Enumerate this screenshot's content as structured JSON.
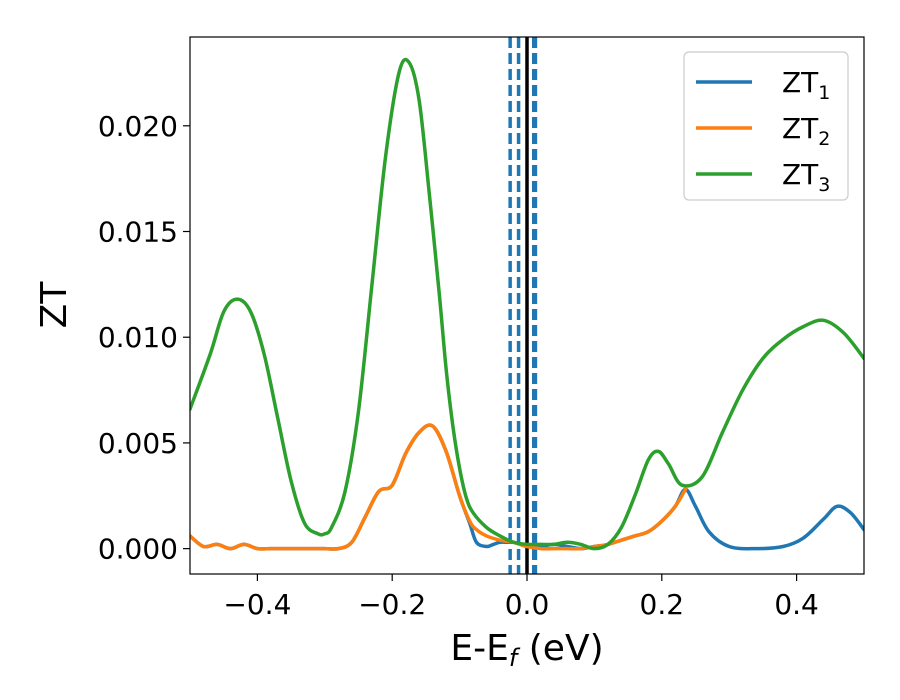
{
  "chart_data": {
    "type": "line",
    "xlabel": "E-E",
    "xlabel_sub": "f",
    "xlabel_unit": " (eV)",
    "ylabel": "ZT",
    "xlim": [
      -0.5,
      0.5
    ],
    "ylim": [
      -0.0012,
      0.0242
    ],
    "xticks": [
      -0.4,
      -0.2,
      0.0,
      0.2,
      0.4
    ],
    "xtick_labels": [
      "−0.4",
      "−0.2",
      "0.0",
      "0.2",
      "0.4"
    ],
    "yticks": [
      0.0,
      0.005,
      0.01,
      0.015,
      0.02
    ],
    "ytick_labels": [
      "0.000",
      "0.005",
      "0.010",
      "0.015",
      "0.020"
    ],
    "grid": false,
    "legend_position": "top-right",
    "vlines": [
      {
        "x": 0.0,
        "style": "solid",
        "color": "#000000"
      },
      {
        "x": -0.0125,
        "style": "dashed",
        "color": "#1f77b4"
      },
      {
        "x": 0.0125,
        "style": "dashed",
        "color": "#1f77b4"
      },
      {
        "x": -0.025,
        "style": "dashed",
        "color": "#1f77b4"
      },
      {
        "x": 0.01,
        "style": "dashed",
        "color": "#1f77b4"
      }
    ],
    "series": [
      {
        "name": "ZT",
        "sub": "1",
        "color": "#1f77b4",
        "x": [
          -0.5,
          -0.48,
          -0.46,
          -0.44,
          -0.42,
          -0.4,
          -0.38,
          -0.36,
          -0.34,
          -0.32,
          -0.3,
          -0.28,
          -0.26,
          -0.24,
          -0.22,
          -0.2,
          -0.18,
          -0.16,
          -0.14,
          -0.12,
          -0.1,
          -0.085,
          -0.075,
          -0.06,
          -0.05,
          -0.04,
          -0.03,
          -0.02,
          -0.01,
          0.0,
          0.01,
          0.02,
          0.04,
          0.06,
          0.08,
          0.1,
          0.12,
          0.14,
          0.16,
          0.18,
          0.2,
          0.22,
          0.235,
          0.25,
          0.27,
          0.3,
          0.34,
          0.38,
          0.41,
          0.44,
          0.46,
          0.48,
          0.5
        ],
        "y": [
          0.0006,
          0.0001,
          0.0002,
          0.0,
          0.0002,
          0.0,
          0.0,
          0.0,
          0.0,
          0.0,
          0.0,
          0.0,
          0.0003,
          0.0015,
          0.0027,
          0.003,
          0.0045,
          0.0055,
          0.0058,
          0.0046,
          0.0025,
          0.0012,
          0.0003,
          0.0001,
          0.0002,
          0.0003,
          0.0003,
          0.0003,
          0.0002,
          0.0001,
          0.0001,
          0.0001,
          0.0002,
          0.0001,
          0.0,
          0.0001,
          0.0002,
          0.0004,
          0.0006,
          0.0008,
          0.0013,
          0.002,
          0.0028,
          0.002,
          0.0008,
          0.0001,
          0.0,
          0.0001,
          0.0005,
          0.0014,
          0.002,
          0.0017,
          0.0009
        ]
      },
      {
        "name": "ZT",
        "sub": "2",
        "color": "#ff7f0e",
        "x": [
          -0.5,
          -0.48,
          -0.46,
          -0.44,
          -0.42,
          -0.4,
          -0.38,
          -0.36,
          -0.34,
          -0.32,
          -0.3,
          -0.28,
          -0.26,
          -0.24,
          -0.22,
          -0.2,
          -0.18,
          -0.16,
          -0.14,
          -0.12,
          -0.1,
          -0.085,
          -0.075,
          -0.06,
          -0.04,
          -0.02,
          0.0,
          0.02,
          0.04,
          0.06,
          0.08,
          0.1,
          0.12,
          0.14,
          0.16,
          0.18,
          0.2,
          0.22,
          0.235
        ],
        "y": [
          0.0006,
          0.0001,
          0.0002,
          0.0,
          0.0002,
          0.0,
          0.0,
          0.0,
          0.0,
          0.0,
          0.0,
          0.0,
          0.0003,
          0.0015,
          0.0027,
          0.003,
          0.0045,
          0.0055,
          0.0058,
          0.0046,
          0.0025,
          0.0013,
          0.0009,
          0.0006,
          0.0004,
          0.0003,
          0.0001,
          0.0,
          0.0,
          0.0,
          0.0,
          0.0001,
          0.0002,
          0.0004,
          0.0006,
          0.0008,
          0.0013,
          0.002,
          0.0028
        ]
      },
      {
        "name": "ZT",
        "sub": "3",
        "color": "#2ca02c",
        "x": [
          -0.5,
          -0.47,
          -0.45,
          -0.43,
          -0.41,
          -0.39,
          -0.37,
          -0.35,
          -0.33,
          -0.31,
          -0.3,
          -0.29,
          -0.27,
          -0.25,
          -0.23,
          -0.21,
          -0.19,
          -0.175,
          -0.16,
          -0.145,
          -0.13,
          -0.12,
          -0.11,
          -0.1,
          -0.09,
          -0.08,
          -0.06,
          -0.04,
          -0.02,
          0.0,
          0.02,
          0.04,
          0.06,
          0.08,
          0.1,
          0.12,
          0.14,
          0.16,
          0.18,
          0.195,
          0.21,
          0.23,
          0.26,
          0.29,
          0.32,
          0.35,
          0.38,
          0.41,
          0.44,
          0.47,
          0.5
        ],
        "y": [
          0.0066,
          0.0092,
          0.0112,
          0.0118,
          0.0112,
          0.0092,
          0.0062,
          0.0032,
          0.0012,
          0.0007,
          0.0007,
          0.001,
          0.0027,
          0.0065,
          0.0125,
          0.0185,
          0.0225,
          0.023,
          0.0212,
          0.0168,
          0.012,
          0.0085,
          0.0058,
          0.0038,
          0.0024,
          0.0017,
          0.001,
          0.0006,
          0.0003,
          0.0002,
          0.0002,
          0.0002,
          0.0003,
          0.0002,
          0.0,
          0.0002,
          0.001,
          0.0025,
          0.0042,
          0.0046,
          0.004,
          0.003,
          0.0034,
          0.0055,
          0.0075,
          0.009,
          0.0099,
          0.0105,
          0.0108,
          0.0102,
          0.009
        ]
      }
    ]
  }
}
